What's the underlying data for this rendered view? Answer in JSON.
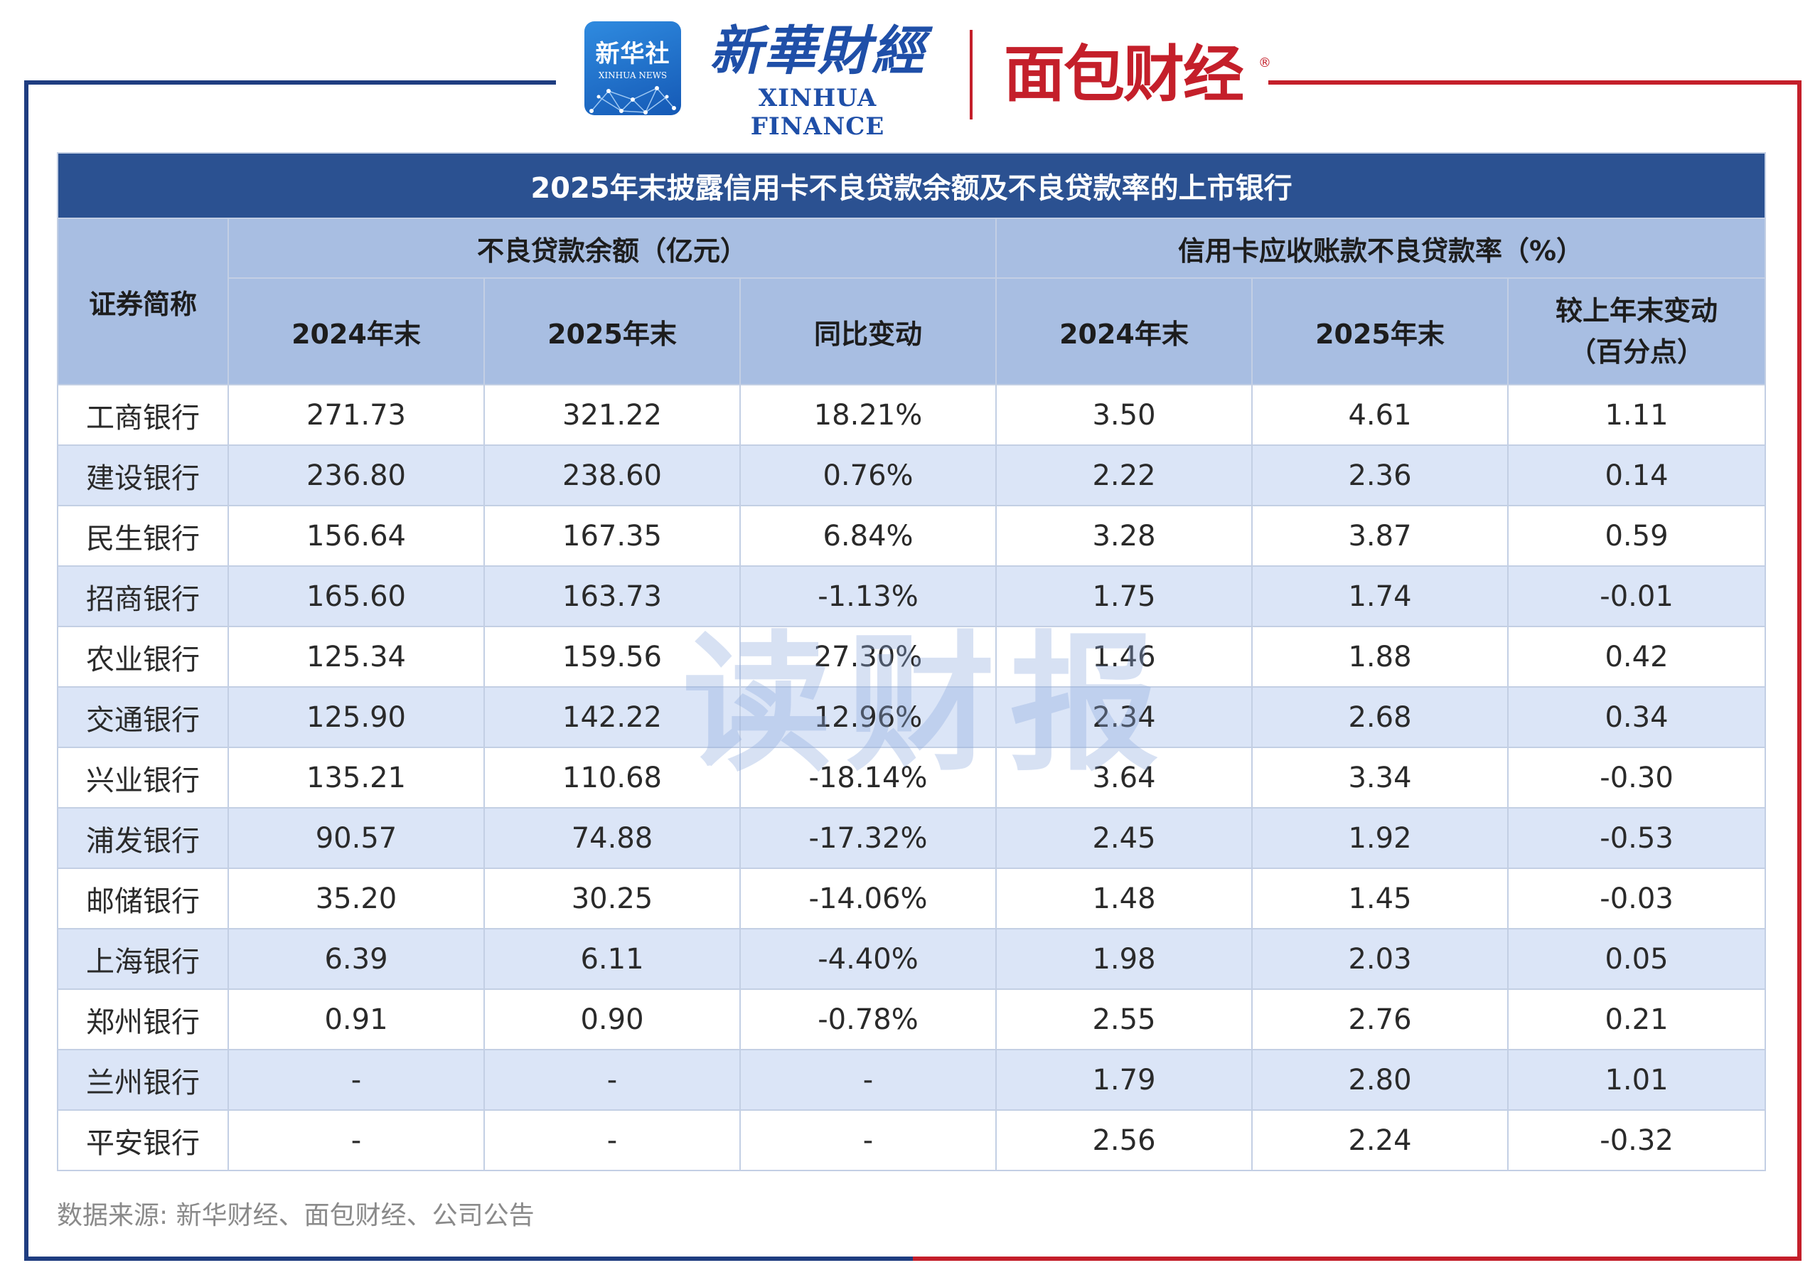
{
  "header": {
    "logo_xinhua_cn": "新华社",
    "logo_xinhua_en": "XINHUA NEWS",
    "logo_finance_cn": "新華財經",
    "logo_finance_en": "XINHUA FINANCE",
    "logo_mianbao": "面包财经",
    "registered_mark": "®"
  },
  "colors": {
    "frame_left": "#1f3d80",
    "frame_right": "#c41f2a",
    "title_bg": "#2b5191",
    "header_bg": "#a8bee2",
    "row_stripe": "#dbe5f7"
  },
  "watermark": "读财报",
  "chart_data": {
    "type": "table",
    "title": "2025年末披露信用卡不良贷款余额及不良贷款率的上市银行",
    "group_headers": {
      "name": "证券简称",
      "balance": "不良贷款余额（亿元）",
      "rate": "信用卡应收账款不良贷款率（%）"
    },
    "columns": {
      "bal_2024": "2024年末",
      "bal_2025": "2025年末",
      "bal_change": "同比变动",
      "rate_2024": "2024年末",
      "rate_2025": "2025年末",
      "rate_change_line1": "较上年末变动",
      "rate_change_line2": "（百分点）"
    },
    "rows": [
      {
        "name": "工商银行",
        "bal_2024": "271.73",
        "bal_2025": "321.22",
        "bal_change": "18.21%",
        "rate_2024": "3.50",
        "rate_2025": "4.61",
        "rate_change": "1.11"
      },
      {
        "name": "建设银行",
        "bal_2024": "236.80",
        "bal_2025": "238.60",
        "bal_change": "0.76%",
        "rate_2024": "2.22",
        "rate_2025": "2.36",
        "rate_change": "0.14"
      },
      {
        "name": "民生银行",
        "bal_2024": "156.64",
        "bal_2025": "167.35",
        "bal_change": "6.84%",
        "rate_2024": "3.28",
        "rate_2025": "3.87",
        "rate_change": "0.59"
      },
      {
        "name": "招商银行",
        "bal_2024": "165.60",
        "bal_2025": "163.73",
        "bal_change": "-1.13%",
        "rate_2024": "1.75",
        "rate_2025": "1.74",
        "rate_change": "-0.01"
      },
      {
        "name": "农业银行",
        "bal_2024": "125.34",
        "bal_2025": "159.56",
        "bal_change": "27.30%",
        "rate_2024": "1.46",
        "rate_2025": "1.88",
        "rate_change": "0.42"
      },
      {
        "name": "交通银行",
        "bal_2024": "125.90",
        "bal_2025": "142.22",
        "bal_change": "12.96%",
        "rate_2024": "2.34",
        "rate_2025": "2.68",
        "rate_change": "0.34"
      },
      {
        "name": "兴业银行",
        "bal_2024": "135.21",
        "bal_2025": "110.68",
        "bal_change": "-18.14%",
        "rate_2024": "3.64",
        "rate_2025": "3.34",
        "rate_change": "-0.30"
      },
      {
        "name": "浦发银行",
        "bal_2024": "90.57",
        "bal_2025": "74.88",
        "bal_change": "-17.32%",
        "rate_2024": "2.45",
        "rate_2025": "1.92",
        "rate_change": "-0.53"
      },
      {
        "name": "邮储银行",
        "bal_2024": "35.20",
        "bal_2025": "30.25",
        "bal_change": "-14.06%",
        "rate_2024": "1.48",
        "rate_2025": "1.45",
        "rate_change": "-0.03"
      },
      {
        "name": "上海银行",
        "bal_2024": "6.39",
        "bal_2025": "6.11",
        "bal_change": "-4.40%",
        "rate_2024": "1.98",
        "rate_2025": "2.03",
        "rate_change": "0.05"
      },
      {
        "name": "郑州银行",
        "bal_2024": "0.91",
        "bal_2025": "0.90",
        "bal_change": "-0.78%",
        "rate_2024": "2.55",
        "rate_2025": "2.76",
        "rate_change": "0.21"
      },
      {
        "name": "兰州银行",
        "bal_2024": "-",
        "bal_2025": "-",
        "bal_change": "-",
        "rate_2024": "1.79",
        "rate_2025": "2.80",
        "rate_change": "1.01"
      },
      {
        "name": "平安银行",
        "bal_2024": "-",
        "bal_2025": "-",
        "bal_change": "-",
        "rate_2024": "2.56",
        "rate_2025": "2.24",
        "rate_change": "-0.32"
      }
    ]
  },
  "source": "数据来源: 新华财经、面包财经、公司公告"
}
